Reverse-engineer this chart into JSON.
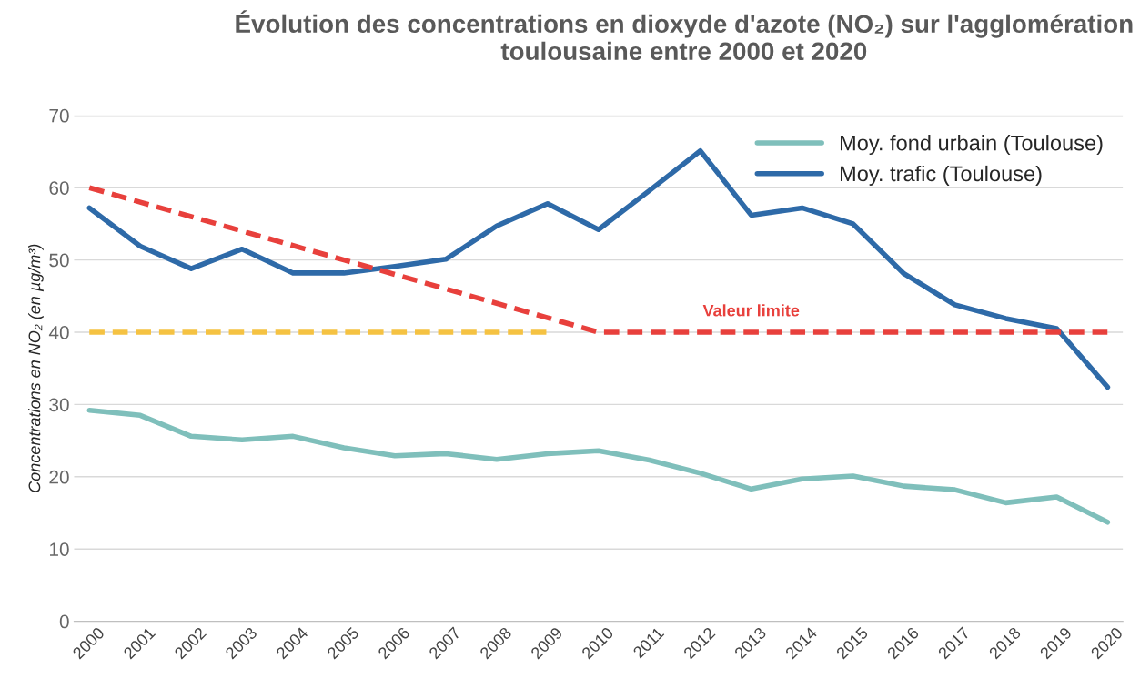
{
  "chart_data": {
    "type": "line",
    "title": "Évolution des concentrations en dioxyde d'azote (NO₂) sur l'agglomération toulousaine entre 2000 et 2020",
    "ylabel": "Concentrations en NO₂ (en µg/m³)",
    "categories": [
      "2000",
      "2001",
      "2002",
      "2003",
      "2004",
      "2005",
      "2006",
      "2007",
      "2008",
      "2009",
      "2010",
      "2011",
      "2012",
      "2013",
      "2014",
      "2015",
      "2016",
      "2017",
      "2018",
      "2019",
      "2020"
    ],
    "series": [
      {
        "name": "Moy. fond urbain (Toulouse)",
        "color": "#7fbfbb",
        "line_style": "solid",
        "values": [
          29.2,
          28.5,
          25.6,
          25.1,
          25.6,
          24.0,
          22.9,
          23.2,
          22.4,
          23.2,
          23.6,
          22.3,
          20.5,
          18.3,
          19.7,
          20.1,
          18.7,
          18.2,
          16.4,
          17.2,
          13.7
        ]
      },
      {
        "name": "Moy. trafic (Toulouse)",
        "color": "#2e6aa8",
        "line_style": "solid",
        "values": [
          57.2,
          51.9,
          48.8,
          51.5,
          48.2,
          48.2,
          49.1,
          50.1,
          54.7,
          57.8,
          54.2,
          59.6,
          65.1,
          56.2,
          57.2,
          55.0,
          48.1,
          43.8,
          41.9,
          40.5,
          32.4
        ]
      },
      {
        "color": "#e8403c",
        "line_style": "dashed",
        "values": [
          60,
          58,
          56,
          54,
          52,
          50,
          48,
          46,
          44,
          42,
          40,
          40,
          40,
          40,
          40,
          40,
          40,
          40,
          40,
          40,
          40
        ]
      },
      {
        "color": "#f5c242",
        "line_style": "dashed",
        "values": [
          40,
          40,
          40,
          40,
          40,
          40,
          40,
          40,
          40,
          40,
          null,
          null,
          null,
          null,
          null,
          null,
          null,
          null,
          null,
          null,
          null
        ]
      }
    ],
    "annotations": [
      {
        "text": "Valeur limite",
        "x": "2013",
        "y": 40
      }
    ],
    "ylim": [
      0,
      70
    ],
    "yticks": [
      0,
      10,
      20,
      30,
      40,
      50,
      60,
      70
    ],
    "grid": "y",
    "legend": "top right",
    "marker": "none"
  }
}
